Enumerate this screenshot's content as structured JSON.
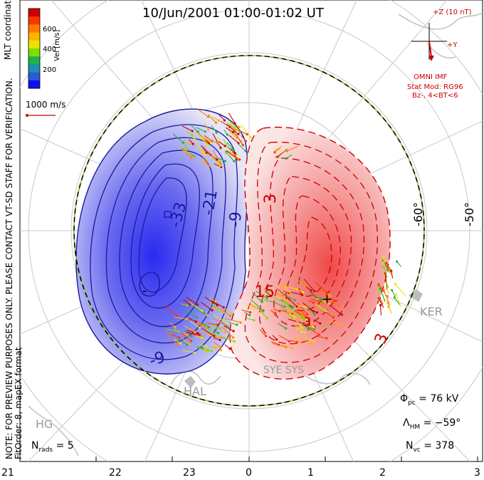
{
  "title": "10/Jun/2001 01:00-01:02 UT",
  "notes": {
    "preview": "NOTE: FOR PREVIEW PURPOSES ONLY. PLEASE CONTACT VT-SD STAFF FOR VERIFICATION.",
    "fit": "FitOrder: 8, mapEX format",
    "coords": "MLT coordinates"
  },
  "colorbar": {
    "label": "Vel [m/s]",
    "ticks": [
      "600",
      "400",
      "200"
    ],
    "colors": [
      "#cc0000",
      "#ff3300",
      "#ff7a00",
      "#ffb300",
      "#e6e600",
      "#7fdd00",
      "#1fb24a",
      "#1a8fb0",
      "#2a5ad8",
      "#1010ee"
    ]
  },
  "velocity_scale": "1000 m/s",
  "imf": {
    "z_label": "+Z (10 nT)",
    "y_label": "+Y",
    "source": "OMNI IMF",
    "model": "Stat Mod: RG96",
    "condition": "Bz-, 4<BT<6"
  },
  "lat_labels": [
    "-60°",
    "-50°"
  ],
  "contour_labels": [
    "-33",
    "-21",
    "-9",
    "-9",
    "-",
    "3",
    "15",
    "3",
    "3",
    "+"
  ],
  "radars": [
    "KER",
    "HAL",
    "SYE SYS",
    "HG"
  ],
  "stats": {
    "phi_label": "Φ",
    "phi_sub": "pc",
    "phi_value": "= 76 kV",
    "lambda_label": "Λ",
    "lambda_sub": "HM",
    "lambda_value": "= −59°",
    "nvc_label": "N",
    "nvc_sub": "vc",
    "nvc_value": "= 378",
    "nrads_label": "N",
    "nrads_sub": "rads",
    "nrads_value": "= 5"
  },
  "mlt_ticks": [
    "21",
    "22",
    "23",
    "0",
    "1",
    "2",
    "3"
  ],
  "colors": {
    "negative_cell": "#3b3bea",
    "positive_cell": "#f04040",
    "contour_neg": "#1a1aa0",
    "contour_pos": "#cc0000"
  }
}
